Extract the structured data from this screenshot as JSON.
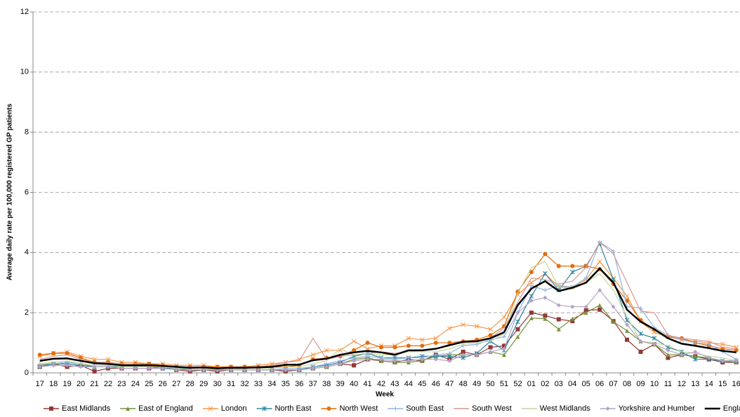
{
  "chart_data": {
    "type": "line",
    "y_label": "Average daily rate per 100,000 registered GP patients",
    "x_label": "Week",
    "categories": [
      "17",
      "18",
      "19",
      "20",
      "21",
      "22",
      "23",
      "24",
      "25",
      "26",
      "27",
      "28",
      "29",
      "30",
      "31",
      "32",
      "33",
      "34",
      "35",
      "36",
      "37",
      "38",
      "39",
      "40",
      "41",
      "42",
      "43",
      "44",
      "45",
      "46",
      "47",
      "48",
      "49",
      "50",
      "51",
      "52",
      "01",
      "02",
      "03",
      "04",
      "05",
      "06",
      "07",
      "08",
      "09",
      "10",
      "11",
      "12",
      "13",
      "14",
      "15",
      "16"
    ],
    "ylim": [
      0,
      12
    ],
    "yticks": [
      0,
      2,
      4,
      6,
      8,
      10,
      12
    ],
    "grid": true,
    "legend": "bottom",
    "series": [
      {
        "name": "East Midlands",
        "color": "#953735",
        "marker": "square",
        "values": [
          0.2,
          0.3,
          0.2,
          0.25,
          0.05,
          0.15,
          0.15,
          0.15,
          0.15,
          0.15,
          0.1,
          0.05,
          0.1,
          0.05,
          0.1,
          0.1,
          0.1,
          0.1,
          0.05,
          0.1,
          0.15,
          0.2,
          0.3,
          0.25,
          0.45,
          0.4,
          0.35,
          0.45,
          0.4,
          0.6,
          0.45,
          0.7,
          0.6,
          0.85,
          0.9,
          1.45,
          2.0,
          1.9,
          1.78,
          1.72,
          2.08,
          2.1,
          1.72,
          1.1,
          0.7,
          0.95,
          0.5,
          0.6,
          0.55,
          0.45,
          0.35,
          0.35
        ]
      },
      {
        "name": "East of England",
        "color": "#77933c",
        "marker": "triangle",
        "values": [
          0.25,
          0.3,
          0.35,
          0.3,
          0.2,
          0.2,
          0.2,
          0.2,
          0.2,
          0.15,
          0.15,
          0.1,
          0.1,
          0.1,
          0.1,
          0.1,
          0.1,
          0.1,
          0.1,
          0.1,
          0.15,
          0.2,
          0.3,
          0.45,
          0.5,
          0.4,
          0.35,
          0.35,
          0.4,
          0.55,
          0.6,
          0.6,
          0.6,
          0.7,
          0.6,
          1.2,
          1.82,
          1.8,
          1.45,
          1.8,
          2.0,
          2.25,
          1.7,
          1.4,
          1.05,
          0.95,
          0.6,
          0.6,
          0.55,
          0.5,
          0.4,
          0.35
        ]
      },
      {
        "name": "London",
        "color": "#f79646",
        "marker": "x",
        "values": [
          0.55,
          0.65,
          0.7,
          0.55,
          0.45,
          0.45,
          0.35,
          0.35,
          0.3,
          0.3,
          0.25,
          0.25,
          0.25,
          0.2,
          0.2,
          0.2,
          0.25,
          0.3,
          0.35,
          0.45,
          0.6,
          0.75,
          0.75,
          1.05,
          0.8,
          0.9,
          0.9,
          1.15,
          1.1,
          1.15,
          1.48,
          1.6,
          1.55,
          1.45,
          1.85,
          2.6,
          3.0,
          3.3,
          2.85,
          2.85,
          3.1,
          3.7,
          3.15,
          2.55,
          1.7,
          1.35,
          1.2,
          1.1,
          1.05,
          1.0,
          0.95,
          0.85
        ]
      },
      {
        "name": "North East",
        "color": "#31859c",
        "marker": "star",
        "values": [
          0.2,
          0.3,
          0.3,
          0.25,
          0.2,
          0.2,
          0.2,
          0.2,
          0.2,
          0.15,
          0.15,
          0.1,
          0.1,
          0.1,
          0.1,
          0.1,
          0.1,
          0.1,
          0.1,
          0.1,
          0.2,
          0.25,
          0.35,
          0.55,
          0.65,
          0.5,
          0.5,
          0.5,
          0.55,
          0.55,
          0.55,
          0.5,
          0.65,
          1.05,
          0.75,
          1.7,
          2.55,
          3.3,
          2.75,
          3.35,
          3.55,
          4.3,
          3.1,
          1.75,
          1.3,
          1.15,
          0.85,
          0.7,
          0.45,
          0.45,
          0.4,
          0.4
        ]
      },
      {
        "name": "North West",
        "color": "#e46c0a",
        "marker": "circle",
        "values": [
          0.6,
          0.65,
          0.65,
          0.5,
          0.35,
          0.35,
          0.3,
          0.3,
          0.3,
          0.25,
          0.2,
          0.2,
          0.2,
          0.2,
          0.2,
          0.2,
          0.2,
          0.2,
          0.2,
          0.25,
          0.45,
          0.5,
          0.55,
          0.75,
          1.0,
          0.85,
          0.85,
          0.9,
          0.9,
          1.0,
          1.0,
          1.05,
          1.1,
          1.25,
          1.55,
          2.7,
          3.35,
          3.95,
          3.55,
          3.55,
          3.55,
          3.45,
          2.95,
          2.4,
          1.75,
          1.45,
          1.2,
          1.15,
          1.0,
          0.9,
          0.8,
          0.75
        ]
      },
      {
        "name": "South East",
        "color": "#8eb4e3",
        "marker": "plus",
        "values": [
          0.3,
          0.3,
          0.35,
          0.3,
          0.25,
          0.25,
          0.2,
          0.2,
          0.2,
          0.2,
          0.15,
          0.15,
          0.15,
          0.1,
          0.1,
          0.1,
          0.1,
          0.1,
          0.15,
          0.15,
          0.2,
          0.3,
          0.4,
          0.5,
          0.55,
          0.5,
          0.45,
          0.5,
          0.5,
          0.6,
          0.65,
          0.9,
          0.95,
          1.1,
          1.2,
          2.0,
          2.9,
          2.75,
          2.9,
          2.85,
          3.15,
          4.35,
          4.05,
          2.2,
          2.15,
          1.5,
          1.25,
          1.1,
          1.0,
          0.95,
          0.7,
          0.45
        ]
      },
      {
        "name": "South West",
        "color": "#d99694",
        "marker": "none",
        "values": [
          0.45,
          0.55,
          0.6,
          0.45,
          0.35,
          0.35,
          0.3,
          0.3,
          0.25,
          0.25,
          0.2,
          0.2,
          0.2,
          0.15,
          0.15,
          0.15,
          0.2,
          0.25,
          0.35,
          0.4,
          1.15,
          0.45,
          0.55,
          0.6,
          0.65,
          0.7,
          0.65,
          0.7,
          0.75,
          0.8,
          0.95,
          1.0,
          1.05,
          1.15,
          1.5,
          2.35,
          3.15,
          3.1,
          2.95,
          3.05,
          3.5,
          4.35,
          3.95,
          3.0,
          2.05,
          2.0,
          1.25,
          1.15,
          1.1,
          1.05,
          0.85,
          0.8
        ]
      },
      {
        "name": "West Midlands",
        "color": "#c3d69b",
        "marker": "none",
        "values": [
          0.3,
          0.35,
          0.4,
          0.3,
          0.25,
          0.25,
          0.2,
          0.2,
          0.2,
          0.2,
          0.15,
          0.15,
          0.15,
          0.1,
          0.1,
          0.15,
          0.15,
          0.15,
          0.2,
          0.2,
          0.3,
          0.4,
          0.8,
          0.6,
          0.65,
          0.6,
          0.6,
          0.7,
          0.7,
          0.7,
          0.8,
          0.95,
          1.0,
          1.05,
          1.3,
          2.65,
          3.5,
          3.7,
          2.85,
          2.8,
          3.0,
          3.3,
          2.75,
          1.85,
          1.05,
          1.0,
          0.9,
          0.7,
          0.65,
          0.55,
          0.5,
          0.4
        ]
      },
      {
        "name": "Yorkshire and Humber",
        "color": "#b3a2c7",
        "marker": "diamond",
        "values": [
          0.2,
          0.25,
          0.25,
          0.2,
          0.2,
          0.2,
          0.15,
          0.15,
          0.15,
          0.15,
          0.1,
          0.1,
          0.1,
          0.1,
          0.1,
          0.1,
          0.1,
          0.1,
          0.1,
          0.1,
          0.15,
          0.2,
          0.3,
          0.4,
          0.45,
          0.45,
          0.4,
          0.4,
          0.45,
          0.45,
          0.4,
          0.6,
          0.6,
          0.7,
          0.8,
          2.0,
          2.4,
          2.5,
          2.25,
          2.2,
          2.2,
          2.75,
          2.2,
          1.6,
          1.05,
          0.95,
          0.75,
          0.6,
          0.7,
          0.5,
          0.4,
          0.4
        ]
      },
      {
        "name": "England",
        "color": "#000000",
        "marker": "none",
        "width": 2.5,
        "values": [
          0.4,
          0.47,
          0.48,
          0.4,
          0.32,
          0.3,
          0.25,
          0.25,
          0.25,
          0.23,
          0.2,
          0.17,
          0.18,
          0.15,
          0.17,
          0.17,
          0.18,
          0.2,
          0.27,
          0.27,
          0.42,
          0.47,
          0.6,
          0.68,
          0.73,
          0.68,
          0.6,
          0.75,
          0.75,
          0.8,
          0.92,
          1.03,
          1.05,
          1.15,
          1.35,
          2.25,
          2.8,
          3.05,
          2.72,
          2.83,
          3.0,
          3.47,
          3.0,
          2.1,
          1.7,
          1.45,
          1.15,
          0.97,
          0.9,
          0.82,
          0.73,
          0.68
        ]
      }
    ]
  }
}
